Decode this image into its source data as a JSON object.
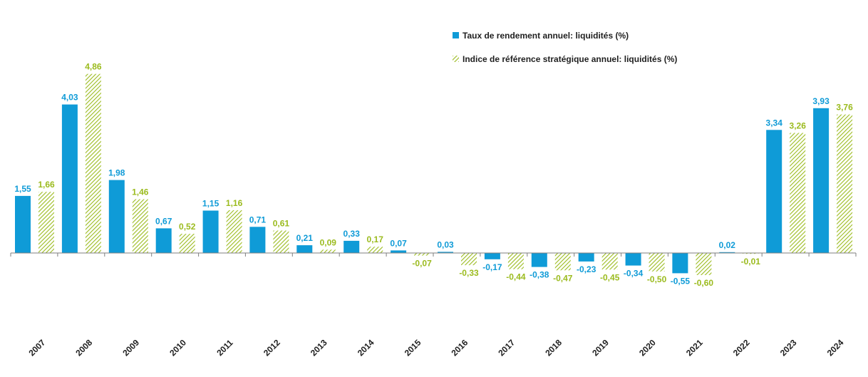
{
  "chart_data": {
    "type": "bar",
    "title": "",
    "xlabel": "",
    "ylabel": "",
    "categories": [
      "2007",
      "2008",
      "2009",
      "2010",
      "2011",
      "2012",
      "2013",
      "2014",
      "2015",
      "2016",
      "2017",
      "2018",
      "2019",
      "2020",
      "2021",
      "2022",
      "2023",
      "2024"
    ],
    "series": [
      {
        "name": "Taux de rendement annuel: liquidités (%)",
        "color": "#0f9bd7",
        "pattern": "solid",
        "values": [
          1.55,
          4.03,
          1.98,
          0.67,
          1.15,
          0.71,
          0.21,
          0.33,
          0.07,
          0.03,
          -0.17,
          -0.38,
          -0.23,
          -0.34,
          -0.55,
          0.02,
          3.34,
          3.93
        ],
        "labels": [
          "1,55",
          "4,03",
          "1,98",
          "0,67",
          "1,15",
          "0,71",
          "0,21",
          "0,33",
          "0,07",
          "0,03",
          "-0,17",
          "-0,38",
          "-0,23",
          "-0,34",
          "-0,55",
          "0,02",
          "3,34",
          "3,93"
        ]
      },
      {
        "name": "Indice de référence stratégique annuel: liquidités (%)",
        "color": "#9bbb1e",
        "pattern": "hatched",
        "values": [
          1.66,
          4.86,
          1.46,
          0.52,
          1.16,
          0.61,
          0.09,
          0.17,
          -0.07,
          -0.33,
          -0.44,
          -0.47,
          -0.45,
          -0.5,
          -0.6,
          -0.01,
          3.26,
          3.76
        ],
        "labels": [
          "1,66",
          "4,86",
          "1,46",
          "0,52",
          "1,16",
          "0,61",
          "0,09",
          "0,17",
          "-0,07",
          "-0,33",
          "-0,44",
          "-0,47",
          "-0,45",
          "-0,50",
          "-0,60",
          "-0,01",
          "3,26",
          "3,76"
        ]
      }
    ],
    "ylim": [
      -1.5,
      5.2
    ],
    "grid": false,
    "legend": "top-right"
  }
}
